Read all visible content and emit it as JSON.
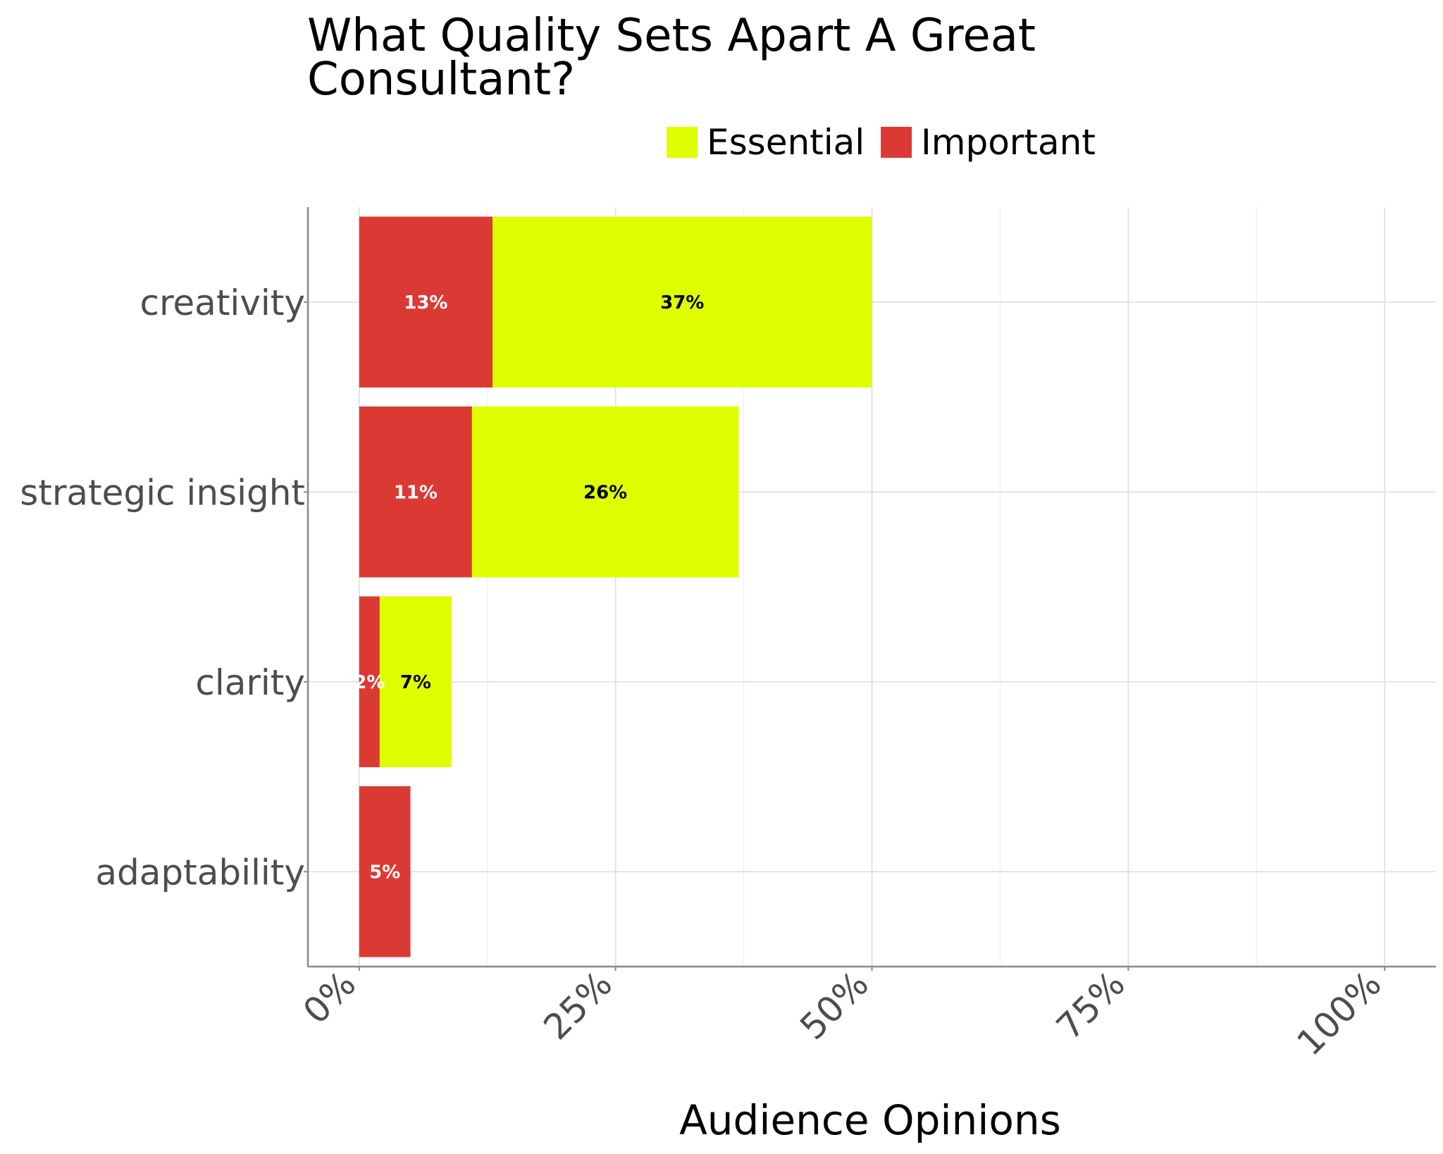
{
  "chart_data": {
    "type": "bar",
    "orientation": "horizontal",
    "stacked": true,
    "title_lines": [
      "What Quality Sets Apart A Great",
      "Consultant?"
    ],
    "xlabel": "Audience Opinions",
    "ylabel": "",
    "categories": [
      "creativity",
      "strategic insight",
      "clarity",
      "adaptability"
    ],
    "series": [
      {
        "name": "Important",
        "color": "#db3a34",
        "label_color": "#ffffff",
        "values": [
          13,
          11,
          2,
          5
        ]
      },
      {
        "name": "Essential",
        "color": "#dfff00",
        "label_color": "#000000",
        "values": [
          37,
          26,
          7,
          0
        ]
      }
    ],
    "value_labels": [
      [
        "13%",
        "11%",
        "2%",
        "5%"
      ],
      [
        "37%",
        "26%",
        "7%",
        ""
      ]
    ],
    "legend_order": [
      "Essential",
      "Important"
    ],
    "xlim": [
      -5,
      105
    ],
    "xticks": [
      0,
      25,
      50,
      75,
      100
    ],
    "xtick_labels": [
      "0%",
      "25%",
      "50%",
      "75%",
      "100%"
    ],
    "legend_position": "top",
    "grid": true
  }
}
